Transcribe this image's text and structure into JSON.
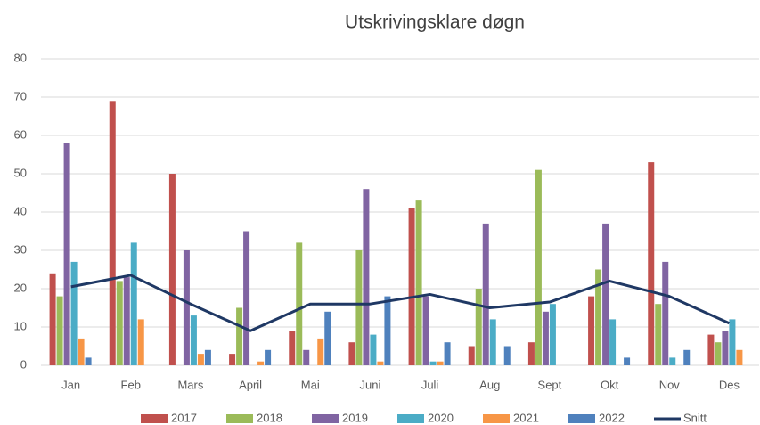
{
  "chart_data": {
    "type": "bar",
    "title": "Utskrivingsklare døgn",
    "categories": [
      "Jan",
      "Feb",
      "Mars",
      "April",
      "Mai",
      "Juni",
      "Juli",
      "Aug",
      "Sept",
      "Okt",
      "Nov",
      "Des"
    ],
    "series": [
      {
        "name": "2017",
        "color": "#c0504d",
        "values": [
          24,
          69,
          50,
          3,
          9,
          6,
          41,
          5,
          6,
          18,
          53,
          8
        ]
      },
      {
        "name": "2018",
        "color": "#9bbb59",
        "values": [
          18,
          22,
          0,
          15,
          32,
          30,
          43,
          20,
          51,
          25,
          16,
          6
        ]
      },
      {
        "name": "2019",
        "color": "#8064a2",
        "values": [
          58,
          23,
          30,
          35,
          4,
          46,
          18,
          37,
          14,
          37,
          27,
          9
        ]
      },
      {
        "name": "2020",
        "color": "#4bacc6",
        "values": [
          27,
          32,
          13,
          0,
          0,
          8,
          1,
          12,
          16,
          12,
          2,
          12
        ]
      },
      {
        "name": "2021",
        "color": "#f79646",
        "values": [
          7,
          12,
          3,
          1,
          7,
          1,
          1,
          0,
          0,
          0,
          0,
          4
        ]
      },
      {
        "name": "2022",
        "color": "#4f81bd",
        "values": [
          2,
          0,
          4,
          4,
          14,
          18,
          6,
          5,
          0,
          2,
          4,
          0
        ]
      },
      {
        "name": "Snitt",
        "color": "#1f3864",
        "type": "line",
        "values": [
          20.5,
          23.5,
          16,
          9,
          16,
          16,
          18.5,
          15,
          16.5,
          22,
          18,
          11
        ]
      }
    ],
    "ylim": [
      0,
      80
    ],
    "yticks": [
      0,
      10,
      20,
      30,
      40,
      50,
      60,
      70,
      80
    ],
    "grid": true,
    "legend": "bottom"
  }
}
